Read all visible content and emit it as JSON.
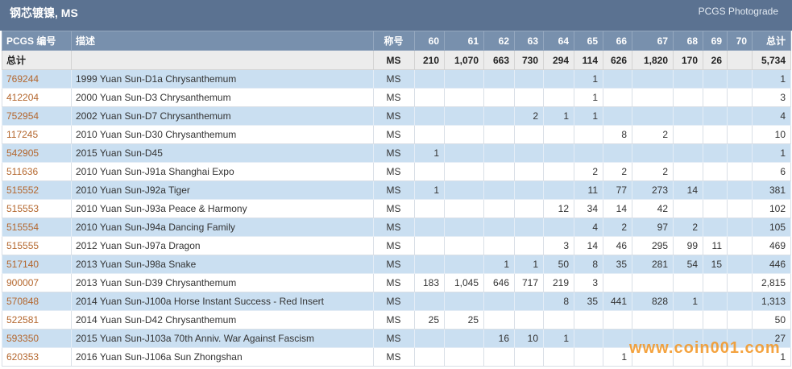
{
  "panel": {
    "title": "钢芯镀镍, MS",
    "photograde_link": "PCGS Photograde"
  },
  "table": {
    "headers": {
      "pcgs_no": "PCGS 编号",
      "description": "描述",
      "designation": "称号",
      "grades": [
        "60",
        "61",
        "62",
        "63",
        "64",
        "65",
        "66",
        "67",
        "68",
        "69",
        "70"
      ],
      "total": "总计"
    },
    "total_row": {
      "label": "总计",
      "designation": "MS",
      "counts": [
        "210",
        "1,070",
        "663",
        "730",
        "294",
        "114",
        "626",
        "1,820",
        "170",
        "26",
        null
      ],
      "total": "5,734"
    },
    "rows": [
      {
        "pcgs_no": "769244",
        "description": "1999 Yuan Sun-D1a Chrysanthemum",
        "designation": "MS",
        "counts": [
          null,
          null,
          null,
          null,
          null,
          "1",
          null,
          null,
          null,
          null,
          null
        ],
        "total": "1"
      },
      {
        "pcgs_no": "412204",
        "description": "2000 Yuan Sun-D3 Chrysanthemum",
        "designation": "MS",
        "counts": [
          null,
          null,
          null,
          null,
          null,
          "1",
          null,
          null,
          null,
          null,
          null
        ],
        "total": "3"
      },
      {
        "pcgs_no": "752954",
        "description": "2002 Yuan Sun-D7 Chrysanthemum",
        "designation": "MS",
        "counts": [
          null,
          null,
          null,
          "2",
          "1",
          "1",
          null,
          null,
          null,
          null,
          null
        ],
        "total": "4"
      },
      {
        "pcgs_no": "117245",
        "description": "2010 Yuan Sun-D30 Chrysanthemum",
        "designation": "MS",
        "counts": [
          null,
          null,
          null,
          null,
          null,
          null,
          "8",
          "2",
          null,
          null,
          null
        ],
        "total": "10"
      },
      {
        "pcgs_no": "542905",
        "description": "2015 Yuan Sun-D45",
        "designation": "MS",
        "counts": [
          "1",
          null,
          null,
          null,
          null,
          null,
          null,
          null,
          null,
          null,
          null
        ],
        "total": "1"
      },
      {
        "pcgs_no": "511636",
        "description": "2010 Yuan Sun-J91a Shanghai Expo",
        "designation": "MS",
        "counts": [
          null,
          null,
          null,
          null,
          null,
          "2",
          "2",
          "2",
          null,
          null,
          null
        ],
        "total": "6"
      },
      {
        "pcgs_no": "515552",
        "description": "2010 Yuan Sun-J92a Tiger",
        "designation": "MS",
        "counts": [
          "1",
          null,
          null,
          null,
          null,
          "11",
          "77",
          "273",
          "14",
          null,
          null
        ],
        "total": "381"
      },
      {
        "pcgs_no": "515553",
        "description": "2010 Yuan Sun-J93a Peace & Harmony",
        "designation": "MS",
        "counts": [
          null,
          null,
          null,
          null,
          "12",
          "34",
          "14",
          "42",
          null,
          null,
          null
        ],
        "total": "102"
      },
      {
        "pcgs_no": "515554",
        "description": "2010 Yuan Sun-J94a Dancing Family",
        "designation": "MS",
        "counts": [
          null,
          null,
          null,
          null,
          null,
          "4",
          "2",
          "97",
          "2",
          null,
          null
        ],
        "total": "105"
      },
      {
        "pcgs_no": "515555",
        "description": "2012 Yuan Sun-J97a Dragon",
        "designation": "MS",
        "counts": [
          null,
          null,
          null,
          null,
          "3",
          "14",
          "46",
          "295",
          "99",
          "11",
          null
        ],
        "total": "469"
      },
      {
        "pcgs_no": "517140",
        "description": "2013 Yuan Sun-J98a Snake",
        "designation": "MS",
        "counts": [
          null,
          null,
          "1",
          "1",
          "50",
          "8",
          "35",
          "281",
          "54",
          "15",
          null
        ],
        "total": "446"
      },
      {
        "pcgs_no": "900007",
        "description": "2013 Yuan Sun-D39 Chrysanthemum",
        "designation": "MS",
        "counts": [
          "183",
          "1,045",
          "646",
          "717",
          "219",
          "3",
          null,
          null,
          null,
          null,
          null
        ],
        "total": "2,815"
      },
      {
        "pcgs_no": "570848",
        "description": "2014 Yuan Sun-J100a Horse Instant Success - Red Insert",
        "designation": "MS",
        "counts": [
          null,
          null,
          null,
          null,
          "8",
          "35",
          "441",
          "828",
          "1",
          null,
          null
        ],
        "total": "1,313"
      },
      {
        "pcgs_no": "522581",
        "description": "2014 Yuan Sun-D42 Chrysanthemum",
        "designation": "MS",
        "counts": [
          "25",
          "25",
          null,
          null,
          null,
          null,
          null,
          null,
          null,
          null,
          null
        ],
        "total": "50"
      },
      {
        "pcgs_no": "593350",
        "description": "2015 Yuan Sun-J103a 70th Anniv. War Against Fascism",
        "designation": "MS",
        "counts": [
          null,
          null,
          "16",
          "10",
          "1",
          null,
          null,
          null,
          null,
          null,
          null
        ],
        "total": "27"
      },
      {
        "pcgs_no": "620353",
        "description": "2016 Yuan Sun-J106a Sun Zhongshan",
        "designation": "MS",
        "counts": [
          null,
          null,
          null,
          null,
          null,
          null,
          "1",
          null,
          null,
          null,
          null
        ],
        "total": "1"
      }
    ]
  },
  "watermark": "www.coin001.com",
  "colors": {
    "title_bar": "#5b7291",
    "header_row": "#7890ad",
    "total_row": "#ececec",
    "row_blue": "#cadff1",
    "row_white": "#ffffff",
    "link": "#b4672e",
    "watermark": "#f39a2c"
  }
}
